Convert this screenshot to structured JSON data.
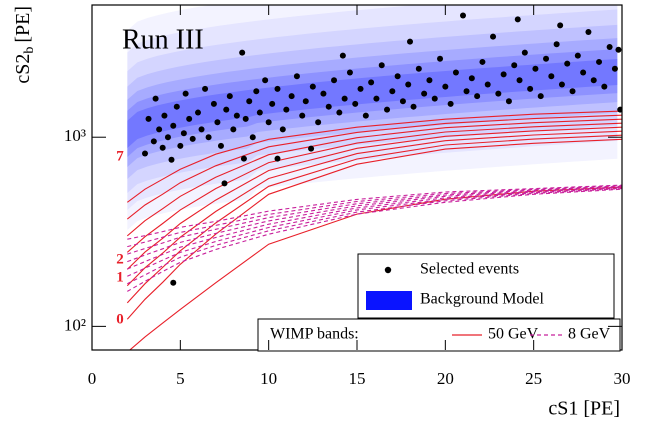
{
  "chart_data": {
    "type": "scatter",
    "annotation": "Run III",
    "xlabel": "cS1 [PE]",
    "ylabel_parts": [
      "cS2",
      "b",
      "[PE]"
    ],
    "xlim": [
      0,
      30
    ],
    "ylim": [
      75,
      5000
    ],
    "log_y": true,
    "xticks": [
      0,
      5,
      10,
      15,
      20,
      25,
      30
    ],
    "yticks": [
      {
        "value": 100,
        "label": "10²"
      },
      {
        "value": 1000,
        "label": "10³"
      }
    ],
    "series": [
      {
        "name": "Selected events",
        "color": "#000000",
        "x": [
          3.0,
          3.2,
          3.5,
          3.6,
          3.8,
          4.0,
          4.1,
          4.3,
          4.5,
          4.6,
          4.8,
          5.0,
          5.2,
          5.3,
          5.5,
          5.7,
          6.0,
          6.2,
          6.4,
          6.6,
          6.9,
          7.1,
          7.3,
          7.6,
          7.8,
          8.0,
          8.2,
          8.5,
          8.7,
          8.9,
          9.1,
          9.3,
          9.5,
          9.8,
          10.0,
          10.2,
          10.5,
          10.8,
          11.0,
          11.3,
          11.6,
          11.9,
          12.1,
          12.5,
          12.8,
          13.1,
          13.4,
          13.7,
          14.0,
          14.3,
          14.6,
          14.9,
          15.2,
          15.5,
          15.8,
          16.1,
          16.4,
          16.7,
          17.0,
          17.3,
          17.6,
          17.9,
          18.2,
          18.5,
          18.8,
          19.1,
          19.4,
          19.7,
          20.0,
          20.3,
          20.6,
          21.0,
          21.2,
          21.5,
          21.8,
          22.1,
          22.4,
          22.7,
          23.0,
          23.3,
          23.6,
          23.9,
          24.2,
          24.5,
          24.8,
          25.1,
          25.4,
          25.7,
          26.0,
          26.3,
          26.6,
          26.9,
          27.2,
          27.5,
          27.8,
          28.1,
          28.4,
          28.7,
          29.0,
          29.3,
          29.6,
          29.9,
          29.8,
          4.6,
          7.5,
          8.6,
          10.5,
          12.4,
          24.1,
          26.5,
          18.0,
          14.2
        ],
        "values": [
          820,
          1250,
          950,
          1600,
          1100,
          880,
          1300,
          1000,
          760,
          1150,
          1450,
          900,
          1050,
          1700,
          1250,
          980,
          1350,
          1100,
          1800,
          1000,
          1500,
          1200,
          900,
          1400,
          1650,
          1100,
          1300,
          2800,
          1250,
          1550,
          1000,
          1750,
          1350,
          2000,
          1200,
          1500,
          1800,
          1100,
          1400,
          1650,
          2100,
          1300,
          1550,
          1850,
          1200,
          1700,
          1450,
          2000,
          1350,
          1600,
          2200,
          1500,
          1800,
          1300,
          1950,
          1600,
          2400,
          1400,
          1750,
          2100,
          1550,
          1900,
          1450,
          2300,
          1700,
          2000,
          1600,
          2600,
          1850,
          1500,
          2200,
          4400,
          1750,
          2050,
          1650,
          2500,
          1900,
          3400,
          1700,
          2150,
          1550,
          2400,
          2000,
          2800,
          1800,
          2300,
          1650,
          2600,
          2100,
          3100,
          1900,
          2450,
          1750,
          2700,
          2200,
          3600,
          2000,
          2500,
          1850,
          3000,
          2300,
          1400,
          2900,
          170,
          570,
          770,
          770,
          870,
          4200,
          3900,
          3200,
          2700
        ]
      }
    ],
    "background_model": {
      "name": "Background Model",
      "color": "#0a14ff"
    },
    "wimp_bands": {
      "label": "WIMP bands:",
      "x": [
        2,
        3,
        4,
        5,
        7,
        10,
        15,
        20,
        25,
        30
      ],
      "groups": [
        {
          "name": "50 GeV",
          "color": "#e8202a",
          "dashed": false,
          "lines": [
            [
              73,
              88,
              104,
              123,
              170,
              272,
              392,
              470,
              518,
              544
            ],
            [
              109,
              139,
              171,
              213,
              307,
              499,
              720,
              865,
              929,
              975
            ],
            [
              133,
              168,
              205,
              251,
              352,
              550,
              767,
              910,
              977,
              1025
            ],
            [
              164,
              204,
              244,
              296,
              405,
              605,
              819,
              959,
              1027,
              1076
            ],
            [
              200,
              247,
              292,
              350,
              465,
              667,
              874,
              1011,
              1080,
              1129
            ],
            [
              246,
              298,
              350,
              413,
              535,
              734,
              931,
              1066,
              1135,
              1186
            ],
            [
              301,
              362,
              419,
              487,
              614,
              808,
              994,
              1123,
              1193,
              1245
            ],
            [
              369,
              438,
              500,
              575,
              706,
              890,
              1060,
              1183,
              1254,
              1307
            ],
            [
              453,
              531,
              600,
              677,
              813,
              975,
              1129,
              1245,
              1324,
              1374
            ]
          ]
        },
        {
          "name": "8 GeV",
          "color": "#c8209c",
          "dashed": true,
          "lines": [
            [
              153,
              173,
              195,
              218,
              255,
              307,
              392,
              453,
              499,
              531
            ],
            [
              168,
              187,
              209,
              232,
              268,
              320,
              402,
              461,
              504,
              535
            ],
            [
              184,
              203,
              224,
              246,
              281,
              333,
              413,
              469,
              509,
              538
            ],
            [
              201,
              220,
              240,
              262,
              295,
              347,
              423,
              478,
              514,
              542
            ],
            [
              220,
              238,
              257,
              278,
              310,
              361,
              434,
              487,
              519,
              546
            ],
            [
              241,
              258,
              276,
              296,
              326,
              376,
              445,
              495,
              525,
              550
            ],
            [
              264,
              279,
              296,
              314,
              342,
              391,
              457,
              504,
              530,
              554
            ],
            [
              289,
              302,
              317,
              334,
              359,
              407,
              469,
              513,
              535,
              558
            ]
          ]
        }
      ]
    },
    "band_labels": [
      "0",
      "1",
      "2",
      "7"
    ]
  }
}
